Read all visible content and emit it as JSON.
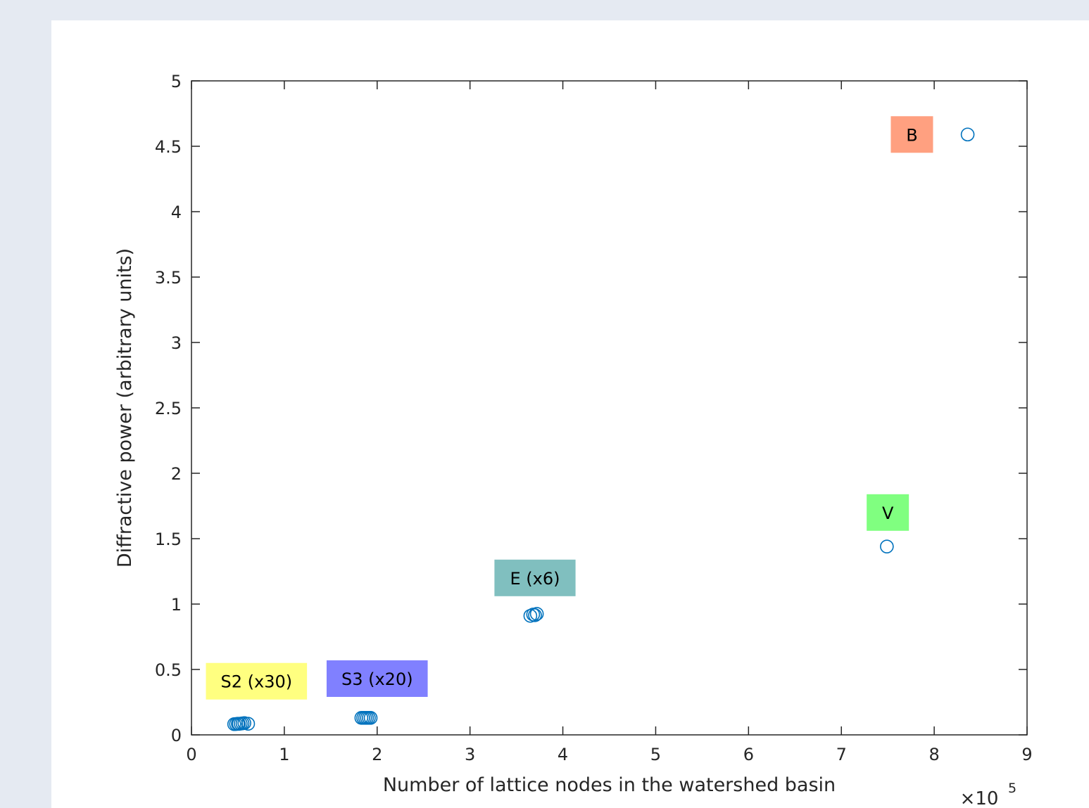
{
  "chart_data": {
    "type": "scatter",
    "title": "",
    "xlabel": "Number of lattice nodes in the watershed basin",
    "ylabel": "Diffractive power (arbitrary units)",
    "x_multiplier_label": "×10",
    "x_multiplier_exponent": "5",
    "xlim": [
      0,
      9
    ],
    "ylim": [
      0,
      5
    ],
    "xticks": [
      0,
      1,
      2,
      3,
      4,
      5,
      6,
      7,
      8,
      9
    ],
    "yticks": [
      0,
      0.5,
      1,
      1.5,
      2,
      2.5,
      3,
      3.5,
      4,
      4.5,
      5
    ],
    "xtick_labels": [
      "0",
      "1",
      "2",
      "3",
      "4",
      "5",
      "6",
      "7",
      "8",
      "9"
    ],
    "ytick_labels": [
      "0",
      "0.5",
      "1",
      "1.5",
      "2",
      "2.5",
      "3",
      "3.5",
      "4",
      "4.5",
      "5"
    ],
    "grid": false,
    "marker_color": "#0072bd",
    "points": [
      {
        "x": 0.46,
        "y": 0.082
      },
      {
        "x": 0.48,
        "y": 0.083
      },
      {
        "x": 0.5,
        "y": 0.085
      },
      {
        "x": 0.51,
        "y": 0.084
      },
      {
        "x": 0.53,
        "y": 0.086
      },
      {
        "x": 0.55,
        "y": 0.088
      },
      {
        "x": 0.57,
        "y": 0.09
      },
      {
        "x": 0.61,
        "y": 0.085
      },
      {
        "x": 1.83,
        "y": 0.13
      },
      {
        "x": 1.85,
        "y": 0.13
      },
      {
        "x": 1.87,
        "y": 0.13
      },
      {
        "x": 1.89,
        "y": 0.13
      },
      {
        "x": 1.91,
        "y": 0.13
      },
      {
        "x": 1.93,
        "y": 0.13
      },
      {
        "x": 3.65,
        "y": 0.91
      },
      {
        "x": 3.68,
        "y": 0.92
      },
      {
        "x": 3.7,
        "y": 0.915
      },
      {
        "x": 3.72,
        "y": 0.925
      },
      {
        "x": 7.49,
        "y": 1.44
      },
      {
        "x": 8.36,
        "y": 4.59
      }
    ],
    "annotations": [
      {
        "text": "S2 (x30)",
        "x": 0.7,
        "y": 0.41,
        "color": "#ffff80"
      },
      {
        "text": "S3 (x20)",
        "x": 2.0,
        "y": 0.43,
        "color": "#8080ff"
      },
      {
        "text": "E (x6)",
        "x": 3.7,
        "y": 1.2,
        "color": "#80bfbf"
      },
      {
        "text": "V",
        "x": 7.5,
        "y": 1.7,
        "color": "#80ff80"
      },
      {
        "text": "B",
        "x": 7.76,
        "y": 4.59,
        "color": "#ffa080"
      }
    ]
  }
}
